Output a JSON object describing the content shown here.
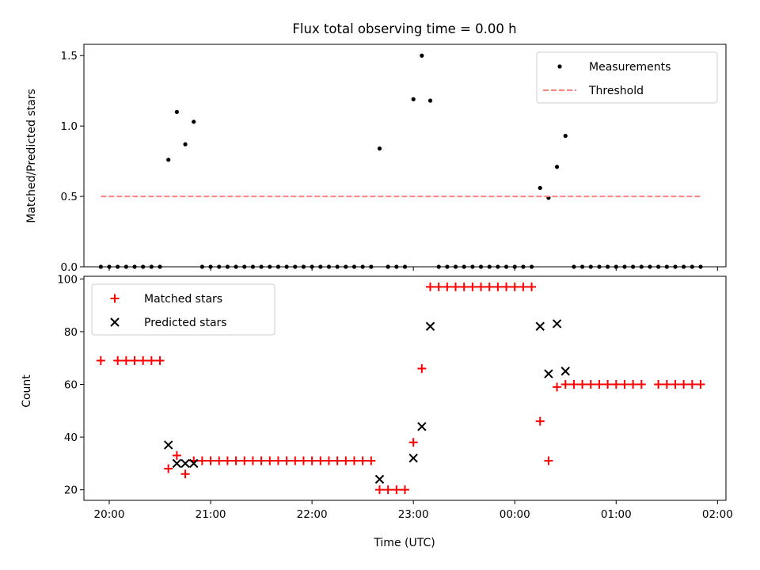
{
  "chart_data": [
    {
      "type": "scatter",
      "title": "Flux total observing time = 0.00 h",
      "xlabel": "",
      "ylabel": "Matched/Predicted stars",
      "xlim": [
        "19:45",
        "02:05"
      ],
      "ylim": [
        0,
        1.58
      ],
      "yticks": [
        0.0,
        0.5,
        1.0,
        1.5
      ],
      "ytick_labels": [
        "0.0",
        "0.5",
        "1.0",
        "1.5"
      ],
      "legend": [
        "Measurements",
        "Threshold"
      ],
      "legend_position": "top-right",
      "series": [
        {
          "name": "Measurements",
          "marker": "dot",
          "color": "#000000",
          "points": [
            [
              "19:55",
              0
            ],
            [
              "20:00",
              0
            ],
            [
              "20:05",
              0
            ],
            [
              "20:10",
              0
            ],
            [
              "20:15",
              0
            ],
            [
              "20:20",
              0
            ],
            [
              "20:25",
              0
            ],
            [
              "20:30",
              0
            ],
            [
              "20:35",
              0.76
            ],
            [
              "20:40",
              1.1
            ],
            [
              "20:45",
              0.87
            ],
            [
              "20:50",
              1.03
            ],
            [
              "20:55",
              0
            ],
            [
              "21:00",
              0
            ],
            [
              "21:05",
              0
            ],
            [
              "21:10",
              0
            ],
            [
              "21:15",
              0
            ],
            [
              "21:20",
              0
            ],
            [
              "21:25",
              0
            ],
            [
              "21:30",
              0
            ],
            [
              "21:35",
              0
            ],
            [
              "21:40",
              0
            ],
            [
              "21:45",
              0
            ],
            [
              "21:50",
              0
            ],
            [
              "21:55",
              0
            ],
            [
              "22:00",
              0
            ],
            [
              "22:05",
              0
            ],
            [
              "22:10",
              0
            ],
            [
              "22:15",
              0
            ],
            [
              "22:20",
              0
            ],
            [
              "22:25",
              0
            ],
            [
              "22:30",
              0
            ],
            [
              "22:35",
              0
            ],
            [
              "22:40",
              0.84
            ],
            [
              "22:45",
              0
            ],
            [
              "22:50",
              0
            ],
            [
              "22:55",
              0
            ],
            [
              "23:00",
              1.19
            ],
            [
              "23:05",
              1.5
            ],
            [
              "23:10",
              1.18
            ],
            [
              "23:15",
              0
            ],
            [
              "23:20",
              0
            ],
            [
              "23:25",
              0
            ],
            [
              "23:30",
              0
            ],
            [
              "23:35",
              0
            ],
            [
              "23:40",
              0
            ],
            [
              "23:45",
              0
            ],
            [
              "23:50",
              0
            ],
            [
              "23:55",
              0
            ],
            [
              "00:00",
              0
            ],
            [
              "00:05",
              0
            ],
            [
              "00:10",
              0
            ],
            [
              "00:15",
              0.56
            ],
            [
              "00:20",
              0.49
            ],
            [
              "00:25",
              0.71
            ],
            [
              "00:30",
              0.93
            ],
            [
              "00:35",
              0
            ],
            [
              "00:40",
              0
            ],
            [
              "00:45",
              0
            ],
            [
              "00:50",
              0
            ],
            [
              "00:55",
              0
            ],
            [
              "01:00",
              0
            ],
            [
              "01:05",
              0
            ],
            [
              "01:10",
              0
            ],
            [
              "01:15",
              0
            ],
            [
              "01:20",
              0
            ],
            [
              "01:25",
              0
            ],
            [
              "01:30",
              0
            ],
            [
              "01:35",
              0
            ],
            [
              "01:40",
              0
            ],
            [
              "01:45",
              0
            ],
            [
              "01:50",
              0
            ]
          ]
        },
        {
          "name": "Threshold",
          "style": "dashed",
          "color": "#ff8080",
          "points": [
            [
              "19:55",
              0.5
            ],
            [
              "01:50",
              0.5
            ]
          ]
        }
      ]
    },
    {
      "type": "scatter",
      "title": "",
      "xlabel": "Time (UTC)",
      "ylabel": "Count",
      "xlim": [
        "19:45",
        "02:05"
      ],
      "ylim": [
        16,
        101
      ],
      "yticks": [
        20,
        40,
        60,
        80,
        100
      ],
      "ytick_labels": [
        "20",
        "40",
        "60",
        "80",
        "100"
      ],
      "xticks": [
        "20:00",
        "21:00",
        "22:00",
        "23:00",
        "00:00",
        "01:00",
        "02:00"
      ],
      "xtick_labels": [
        "20:00",
        "21:00",
        "22:00",
        "23:00",
        "00:00",
        "01:00",
        "02:00"
      ],
      "legend": [
        "Matched stars",
        "Predicted stars"
      ],
      "legend_position": "top-left",
      "series": [
        {
          "name": "Matched stars",
          "marker": "plus",
          "color": "#ff0000",
          "points": [
            [
              "19:55",
              69
            ],
            [
              "20:05",
              69
            ],
            [
              "20:10",
              69
            ],
            [
              "20:15",
              69
            ],
            [
              "20:20",
              69
            ],
            [
              "20:25",
              69
            ],
            [
              "20:30",
              69
            ],
            [
              "20:35",
              28
            ],
            [
              "20:40",
              33
            ],
            [
              "20:45",
              26
            ],
            [
              "20:50",
              31
            ],
            [
              "20:55",
              31
            ],
            [
              "21:00",
              31
            ],
            [
              "21:05",
              31
            ],
            [
              "21:10",
              31
            ],
            [
              "21:15",
              31
            ],
            [
              "21:20",
              31
            ],
            [
              "21:25",
              31
            ],
            [
              "21:30",
              31
            ],
            [
              "21:35",
              31
            ],
            [
              "21:40",
              31
            ],
            [
              "21:45",
              31
            ],
            [
              "21:50",
              31
            ],
            [
              "21:55",
              31
            ],
            [
              "22:00",
              31
            ],
            [
              "22:05",
              31
            ],
            [
              "22:10",
              31
            ],
            [
              "22:15",
              31
            ],
            [
              "22:20",
              31
            ],
            [
              "22:25",
              31
            ],
            [
              "22:30",
              31
            ],
            [
              "22:35",
              31
            ],
            [
              "22:40",
              20
            ],
            [
              "22:45",
              20
            ],
            [
              "22:50",
              20
            ],
            [
              "22:55",
              20
            ],
            [
              "23:00",
              38
            ],
            [
              "23:05",
              66
            ],
            [
              "23:10",
              97
            ],
            [
              "23:15",
              97
            ],
            [
              "23:20",
              97
            ],
            [
              "23:25",
              97
            ],
            [
              "23:30",
              97
            ],
            [
              "23:35",
              97
            ],
            [
              "23:40",
              97
            ],
            [
              "23:45",
              97
            ],
            [
              "23:50",
              97
            ],
            [
              "23:55",
              97
            ],
            [
              "00:00",
              97
            ],
            [
              "00:05",
              97
            ],
            [
              "00:10",
              97
            ],
            [
              "00:15",
              46
            ],
            [
              "00:20",
              31
            ],
            [
              "00:25",
              59
            ],
            [
              "00:30",
              60
            ],
            [
              "00:35",
              60
            ],
            [
              "00:40",
              60
            ],
            [
              "00:45",
              60
            ],
            [
              "00:50",
              60
            ],
            [
              "00:55",
              60
            ],
            [
              "01:00",
              60
            ],
            [
              "01:05",
              60
            ],
            [
              "01:10",
              60
            ],
            [
              "01:15",
              60
            ],
            [
              "01:25",
              60
            ],
            [
              "01:30",
              60
            ],
            [
              "01:35",
              60
            ],
            [
              "01:40",
              60
            ],
            [
              "01:45",
              60
            ],
            [
              "01:50",
              60
            ]
          ]
        },
        {
          "name": "Predicted stars",
          "marker": "x",
          "color": "#000000",
          "points": [
            [
              "20:35",
              37
            ],
            [
              "20:40",
              30
            ],
            [
              "20:45",
              30
            ],
            [
              "20:50",
              30
            ],
            [
              "22:40",
              24
            ],
            [
              "23:00",
              32
            ],
            [
              "23:05",
              44
            ],
            [
              "23:10",
              82
            ],
            [
              "00:15",
              82
            ],
            [
              "00:20",
              64
            ],
            [
              "00:25",
              83
            ],
            [
              "00:30",
              65
            ]
          ]
        }
      ]
    }
  ]
}
